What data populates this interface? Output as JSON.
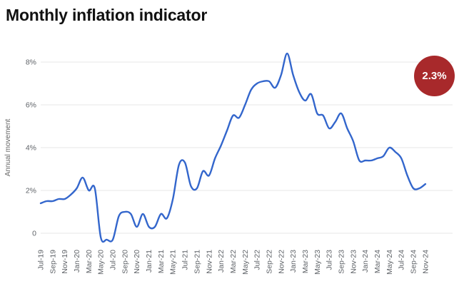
{
  "header": {
    "title": "Monthly inflation indicator"
  },
  "badge": {
    "label": "2.3%",
    "color": "#A8292B",
    "text_color": "#ffffff"
  },
  "chart_data": {
    "type": "line",
    "title": "Monthly inflation indicator",
    "xlabel": "",
    "ylabel": "Annual movement",
    "grid": true,
    "legend_position": "none",
    "line_color": "#3366CC",
    "grid_color": "#e7e7e7",
    "axis_text_color": "#5f6368",
    "ylim": [
      -0.6,
      8.6
    ],
    "y_ticks": [
      {
        "value": 0,
        "label": "0"
      },
      {
        "value": 2,
        "label": "2%"
      },
      {
        "value": 4,
        "label": "4%"
      },
      {
        "value": 6,
        "label": "6%"
      },
      {
        "value": 8,
        "label": "8%"
      }
    ],
    "x_tick_labels": [
      "Jul-19",
      "Sep-19",
      "Nov-19",
      "Jan-20",
      "Mar-20",
      "May-20",
      "Jul-20",
      "Sep-20",
      "Nov-20",
      "Jan-21",
      "Mar-21",
      "May-21",
      "Jul-21",
      "Sep-21",
      "Nov-21",
      "Jan-22",
      "Mar-22",
      "May-22",
      "Jul-22",
      "Sep-22",
      "Nov-22",
      "Jan-23",
      "Mar-23",
      "May-23",
      "Jul-23",
      "Sep-23",
      "Nov-23",
      "Jan-24",
      "Mar-24",
      "May-24",
      "Jul-24",
      "Sep-24",
      "Nov-24"
    ],
    "x": [
      "Jul-19",
      "Aug-19",
      "Sep-19",
      "Oct-19",
      "Nov-19",
      "Dec-19",
      "Jan-20",
      "Feb-20",
      "Mar-20",
      "Apr-20",
      "May-20",
      "Jun-20",
      "Jul-20",
      "Aug-20",
      "Sep-20",
      "Oct-20",
      "Nov-20",
      "Dec-20",
      "Jan-21",
      "Feb-21",
      "Mar-21",
      "Apr-21",
      "May-21",
      "Jun-21",
      "Jul-21",
      "Aug-21",
      "Sep-21",
      "Oct-21",
      "Nov-21",
      "Dec-21",
      "Jan-22",
      "Feb-22",
      "Mar-22",
      "Apr-22",
      "May-22",
      "Jun-22",
      "Jul-22",
      "Aug-22",
      "Sep-22",
      "Oct-22",
      "Nov-22",
      "Dec-22",
      "Jan-23",
      "Feb-23",
      "Mar-23",
      "Apr-23",
      "May-23",
      "Jun-23",
      "Jul-23",
      "Aug-23",
      "Sep-23",
      "Oct-23",
      "Nov-23",
      "Dec-23",
      "Jan-24",
      "Feb-24",
      "Mar-24",
      "Apr-24",
      "May-24",
      "Jun-24",
      "Jul-24",
      "Aug-24",
      "Sep-24",
      "Oct-24",
      "Nov-24"
    ],
    "series": [
      {
        "name": "Annual movement (%)",
        "values": [
          1.4,
          1.5,
          1.5,
          1.6,
          1.6,
          1.8,
          2.1,
          2.6,
          2.0,
          2.1,
          -0.2,
          -0.3,
          -0.3,
          0.8,
          1.0,
          0.9,
          0.3,
          0.9,
          0.3,
          0.3,
          0.9,
          0.7,
          1.6,
          3.2,
          3.3,
          2.2,
          2.1,
          2.9,
          2.7,
          3.5,
          4.1,
          4.8,
          5.5,
          5.4,
          6.0,
          6.7,
          7.0,
          7.1,
          7.1,
          6.8,
          7.4,
          8.4,
          7.4,
          6.6,
          6.2,
          6.5,
          5.6,
          5.5,
          4.9,
          5.2,
          5.6,
          4.9,
          4.3,
          3.4,
          3.4,
          3.4,
          3.5,
          3.6,
          4.0,
          3.8,
          3.5,
          2.7,
          2.1,
          2.1,
          2.3
        ]
      }
    ],
    "annotation": {
      "label": "2.3%",
      "x": "Nov-24"
    }
  }
}
